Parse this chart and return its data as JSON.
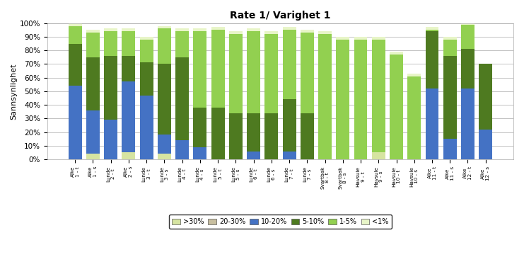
{
  "title": "Rate 1/ Varighet 1",
  "ylabel": "Sannsynlighet",
  "categories": [
    "Alke\n1 - t",
    "Alke\n1 - s",
    "Lunde\n2 - t",
    "Alke\n2 - s",
    "Lunde\n3 - t",
    "Lunde\n3 - s",
    "Lunde\n4 - t",
    "Lunde\n4 - s",
    "Lunde\n5 - t",
    "Lunde\n5 - s",
    "Lunde\n6 - t",
    "Lunde\n6 - s",
    "Lunde\n7 - t",
    "Lunde\n7 - s",
    "Svartbak\n8 - t",
    "Svartbak\n8 - s",
    "Havsule\n9 - t",
    "Havsule\n9 - s",
    "Havsule\n10 - t",
    "Havsule\n10 - s",
    "Alke\n11 - t",
    "Alke\n11 - s",
    "Alke\n12 - t",
    "Alke\n12 - s"
  ],
  "series": {
    ">30%": [
      0,
      4,
      0,
      5,
      0,
      4,
      0,
      0,
      0,
      0,
      0,
      0,
      0,
      0,
      0,
      0,
      0,
      5,
      0,
      0,
      0,
      0,
      0,
      0
    ],
    "20-30%": [
      0,
      0,
      0,
      0,
      0,
      0,
      0,
      0,
      0,
      0,
      0,
      0,
      0,
      0,
      0,
      0,
      0,
      0,
      0,
      0,
      0,
      0,
      0,
      0
    ],
    "10-20%": [
      54,
      32,
      29,
      52,
      47,
      14,
      14,
      9,
      0,
      0,
      6,
      0,
      6,
      0,
      0,
      0,
      0,
      0,
      0,
      0,
      52,
      15,
      52,
      22
    ],
    "5-10%": [
      31,
      39,
      47,
      19,
      24,
      52,
      61,
      29,
      38,
      34,
      28,
      34,
      38,
      34,
      0,
      0,
      0,
      0,
      0,
      0,
      42,
      61,
      29,
      48
    ],
    "1-5%": [
      13,
      18,
      18,
      18,
      17,
      26,
      19,
      56,
      57,
      58,
      60,
      58,
      51,
      59,
      92,
      88,
      88,
      83,
      77,
      61,
      1,
      12,
      18,
      0
    ],
    "<1%": [
      2,
      2,
      2,
      2,
      2,
      2,
      2,
      2,
      2,
      2,
      2,
      2,
      2,
      2,
      2,
      2,
      2,
      2,
      2,
      2,
      2,
      2,
      2,
      0
    ]
  },
  "colors": {
    ">30%": "#d6e4a1",
    "20-30%": "#c8bfa0",
    "10-20%": "#4472c4",
    "5-10%": "#4e7a20",
    "1-5%": "#92d050",
    "<1%": "#e8f5c8"
  },
  "legend_order": [
    ">30%",
    "20-30%",
    "10-20%",
    "5-10%",
    "1-5%",
    "<1%"
  ],
  "ylim": [
    0,
    100
  ],
  "yticks": [
    0,
    10,
    20,
    30,
    40,
    50,
    60,
    70,
    80,
    90,
    100
  ],
  "ytick_labels": [
    "0%",
    "10%",
    "20%",
    "30%",
    "40%",
    "50%",
    "60%",
    "70%",
    "80%",
    "90%",
    "100%"
  ]
}
